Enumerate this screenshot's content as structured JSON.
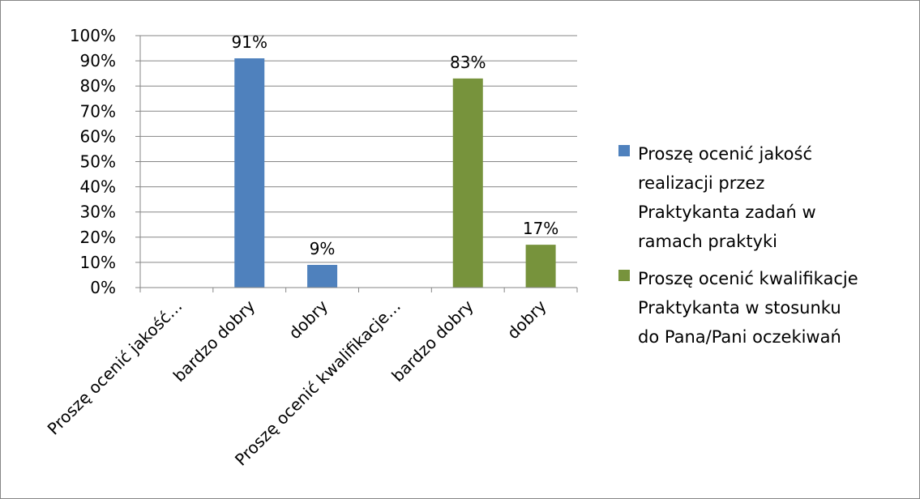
{
  "chart_data": {
    "type": "bar",
    "title": "",
    "xlabel": "",
    "ylabel": "",
    "ylim": [
      0,
      100
    ],
    "y_ticks": [
      "0%",
      "10%",
      "20%",
      "30%",
      "40%",
      "50%",
      "60%",
      "70%",
      "80%",
      "90%",
      "100%"
    ],
    "grid": true,
    "legend_position": "right",
    "categories": [
      "Proszę ocenić jakość…",
      "bardzo dobry",
      "dobry",
      "Proszę ocenić kwalifikacje…",
      "bardzo dobry",
      "dobry"
    ],
    "series": [
      {
        "name": "Proszę ocenić jakość realizacji przez Praktykanta zadań w ramach praktyki",
        "legend_lines": [
          "Proszę ocenić jakość",
          "realizacji przez",
          "Praktykanta zadań w",
          "ramach praktyki"
        ],
        "color": "#4f81bd",
        "values": [
          null,
          91,
          9,
          null,
          null,
          null
        ],
        "labels": [
          "",
          "91%",
          "9%",
          "",
          "",
          ""
        ]
      },
      {
        "name": "Proszę ocenić kwalifikacje Praktykanta w stosunku do Pana/Pani oczekiwań",
        "legend_lines": [
          "Proszę ocenić kwalifikacje",
          "Praktykanta w stosunku",
          "do Pana/Pani oczekiwań"
        ],
        "color": "#77933c",
        "values": [
          null,
          null,
          null,
          null,
          83,
          17
        ],
        "labels": [
          "",
          "",
          "",
          "",
          "83%",
          "17%"
        ]
      }
    ],
    "colors": {
      "gridline": "#868686",
      "axis": "#868686",
      "border": "#868686"
    }
  }
}
